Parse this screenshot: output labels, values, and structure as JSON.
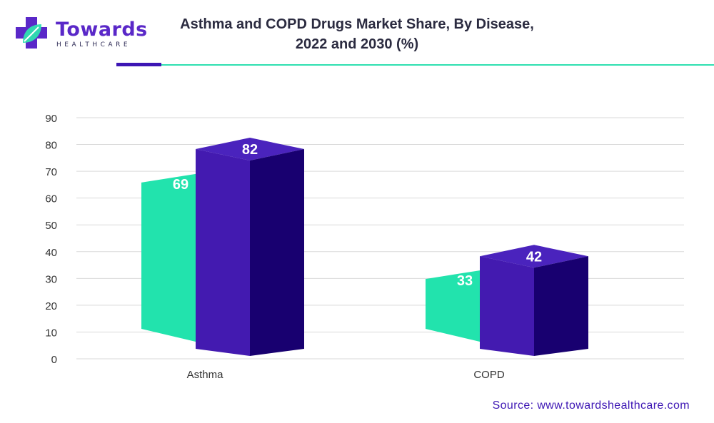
{
  "header": {
    "logo_name": "Towards",
    "logo_sub": "HEALTHCARE",
    "title_line1": "Asthma and COPD Drugs Market Share, By Disease,",
    "title_line2": "2022 and 2030 (%)"
  },
  "source": "Source: www.towardshealthcare.com",
  "colors": {
    "series_2022_front": "#22e3ad",
    "series_2022_top": "#5ef0c6",
    "series_2030_front": "#431ab0",
    "series_2030_top": "#4a23bd",
    "series_2030_side": "#180070",
    "grid": "#d9d9d9",
    "axis_text": "#333333",
    "brand": "#3d16b4",
    "accent": "#2fe0b0"
  },
  "chart_data": {
    "type": "bar",
    "style": "3d-clustered",
    "title": "Asthma and COPD Drugs Market Share, By Disease, 2022 and 2030 (%)",
    "categories": [
      "Asthma",
      "COPD"
    ],
    "series": [
      {
        "values": [
          69,
          33
        ]
      },
      {
        "values": [
          82,
          42
        ]
      }
    ],
    "xlabel": "",
    "ylabel": "",
    "ylim": [
      0,
      90
    ],
    "yticks": [
      0,
      10,
      20,
      30,
      40,
      50,
      60,
      70,
      80,
      90
    ],
    "grid": true,
    "legend": "none"
  }
}
